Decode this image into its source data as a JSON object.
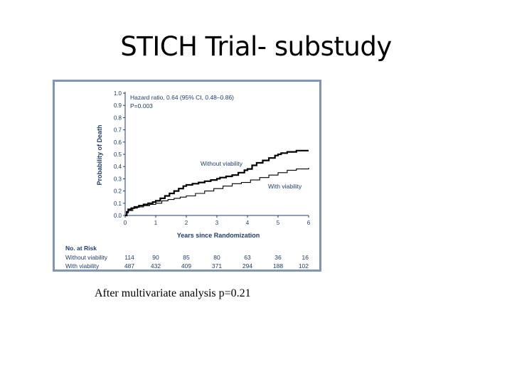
{
  "slide": {
    "title": "STICH Trial- substudy",
    "caption": "After multivariate analysis p=0.21"
  },
  "chart_data": {
    "type": "line",
    "title": "",
    "xlabel": "Years since Randomization",
    "ylabel": "Probability of Death",
    "xlim": [
      0,
      6
    ],
    "ylim": [
      0,
      1.0
    ],
    "x_ticks": [
      "0",
      "1",
      "2",
      "3",
      "4",
      "5",
      "6"
    ],
    "y_ticks": [
      "0.0",
      "0.1",
      "0.2",
      "0.3",
      "0.4",
      "0.5",
      "0.6",
      "0.7",
      "0.8",
      "0.9",
      "1.0"
    ],
    "annotations": {
      "hazard_ratio": "Hazard ratio, 0.64 (95% CI, 0.48–0.86)",
      "p_value": "P=0.003"
    },
    "series": [
      {
        "name": "Without viability",
        "color": "#000000",
        "x": [
          0,
          0.05,
          0.1,
          0.2,
          0.3,
          0.45,
          0.6,
          0.75,
          0.9,
          1.0,
          1.15,
          1.3,
          1.45,
          1.6,
          1.75,
          1.9,
          2.0,
          2.2,
          2.4,
          2.6,
          2.8,
          3.0,
          3.1,
          3.3,
          3.5,
          3.7,
          3.9,
          4.0,
          4.15,
          4.3,
          4.5,
          4.7,
          4.9,
          5.0,
          5.1,
          5.3,
          5.6,
          6.0
        ],
        "y": [
          0,
          0.03,
          0.05,
          0.06,
          0.07,
          0.08,
          0.09,
          0.1,
          0.11,
          0.12,
          0.14,
          0.16,
          0.18,
          0.2,
          0.22,
          0.24,
          0.25,
          0.26,
          0.27,
          0.28,
          0.29,
          0.3,
          0.31,
          0.32,
          0.33,
          0.35,
          0.37,
          0.38,
          0.41,
          0.43,
          0.45,
          0.47,
          0.49,
          0.5,
          0.51,
          0.52,
          0.53,
          0.53
        ]
      },
      {
        "name": "With viability",
        "color": "#000000",
        "x": [
          0,
          0.05,
          0.1,
          0.25,
          0.4,
          0.6,
          0.8,
          1.0,
          1.2,
          1.4,
          1.6,
          1.8,
          2.0,
          2.3,
          2.6,
          2.9,
          3.2,
          3.5,
          3.8,
          4.1,
          4.4,
          4.7,
          5.0,
          5.3,
          5.6,
          6.0
        ],
        "y": [
          0,
          0.02,
          0.04,
          0.06,
          0.07,
          0.08,
          0.09,
          0.1,
          0.12,
          0.13,
          0.14,
          0.15,
          0.16,
          0.18,
          0.2,
          0.22,
          0.24,
          0.26,
          0.27,
          0.29,
          0.31,
          0.33,
          0.35,
          0.37,
          0.38,
          0.39
        ]
      }
    ],
    "series_labels": [
      "Without viability",
      "With viability"
    ],
    "risk_table": {
      "header": "No. at Risk",
      "rows": [
        {
          "label": "Without viability",
          "values": [
            "114",
            "90",
            "85",
            "80",
            "63",
            "36",
            "16"
          ]
        },
        {
          "label": "With viability",
          "values": [
            "487",
            "432",
            "409",
            "371",
            "294",
            "188",
            "102"
          ]
        }
      ]
    }
  }
}
